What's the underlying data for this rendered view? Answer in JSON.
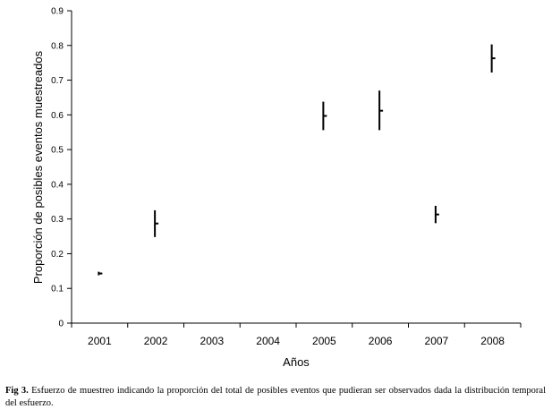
{
  "chart_data": {
    "type": "scatter",
    "categories": [
      "2001",
      "2002",
      "2003",
      "2004",
      "2005",
      "2006",
      "2007",
      "2008"
    ],
    "series": [
      {
        "values": [
          0.143,
          0.287,
          null,
          null,
          0.597,
          0.612,
          0.313,
          0.763
        ],
        "low": [
          0.138,
          0.248,
          null,
          null,
          0.556,
          0.556,
          0.288,
          0.722
        ],
        "high": [
          0.148,
          0.325,
          null,
          null,
          0.638,
          0.67,
          0.338,
          0.803
        ]
      }
    ],
    "xlabel": "Años",
    "ylabel": "Proporción de posibles eventos muestreados",
    "ylim": [
      0,
      0.9
    ],
    "yticks": [
      "0",
      "0.1",
      "0.2",
      "0.3",
      "0.4",
      "0.5",
      "0.6",
      "0.7",
      "0.8",
      "0.9"
    ],
    "grid": false,
    "color": "#000000"
  },
  "caption": {
    "label": "Fig 3.",
    "text": "Esfuerzo de muestreo indicando la proporción del total de posibles eventos que pudieran ser observados dada la distribución temporal del esfuerzo."
  }
}
